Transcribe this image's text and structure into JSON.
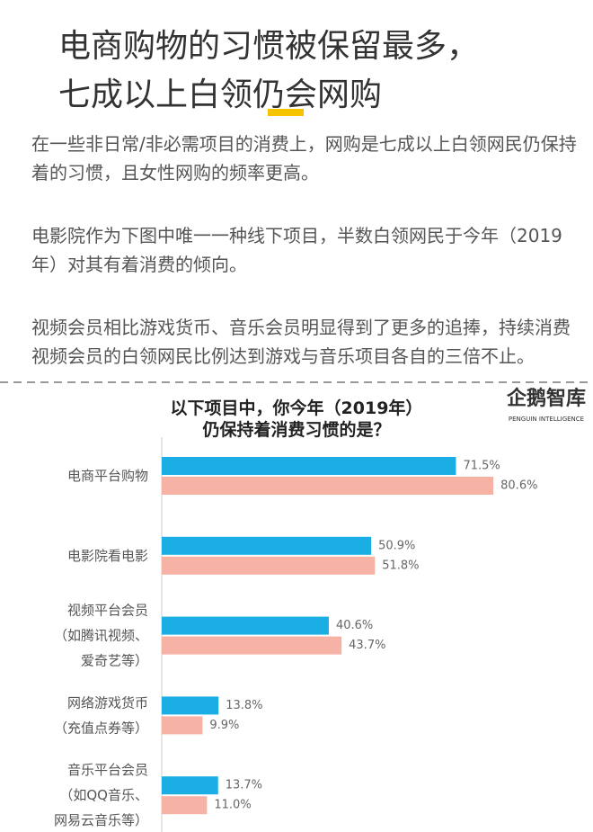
{
  "header": {
    "title_lines": [
      "电商购物的习惯被保留最多，",
      "七成以上白领仍会网购"
    ]
  },
  "paragraphs": [
    "在一些非日常/非必需项目的消费上，网购是七成以上白领网民仍保持着的习惯，且女性网购的频率更高。",
    "电影院作为下图中唯一一种线下项目，半数白领网民于今年（2019年）对其有着消费的倾向。",
    "视频会员相比游戏货币、音乐会员明显得到了更多的追捧，持续消费视频会员的白领网民比例达到游戏与音乐项目各自的三倍不止。"
  ],
  "logo": {
    "name": "企鹅智库",
    "subtitle": "PENGUIN INTELLIGENCE"
  },
  "chart_data": {
    "type": "barh",
    "title": "以下项目中，你今年（2019年）\n仍保持着消费习惯的是？",
    "categories": [
      "电商平台购物",
      "电影院看电影",
      "视频平台会员\n（如腾讯视频、\n爱奇艺等）",
      "网络游戏货币\n（充值点券等）",
      "音乐平台会员\n（如QQ音乐、\n网易云音乐等）"
    ],
    "series": [
      {
        "color": "#1aaee5",
        "values": [
          71.5,
          50.9,
          40.6,
          13.8,
          13.7
        ],
        "value_labels": [
          "71.5%",
          "50.9%",
          "40.6%",
          "13.8%",
          "13.7%"
        ]
      },
      {
        "color": "#f7b2a6",
        "values": [
          80.6,
          51.8,
          43.7,
          9.9,
          11.0
        ],
        "value_labels": [
          "80.6%",
          "51.8%",
          "43.7%",
          "9.9%",
          "11.0%"
        ]
      }
    ]
  }
}
